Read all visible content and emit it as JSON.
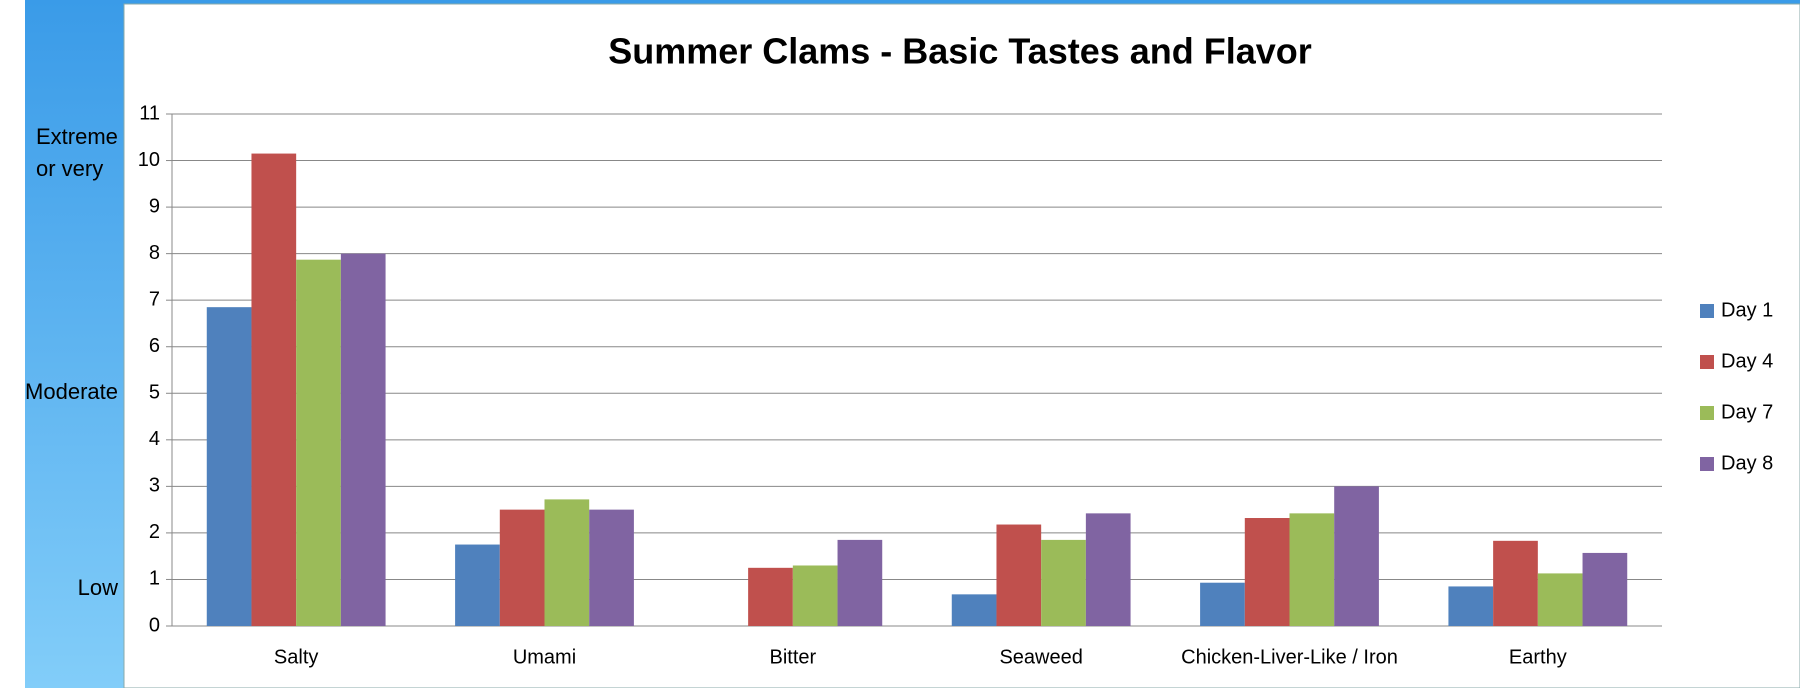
{
  "chart_data": {
    "type": "bar",
    "title": "Summer Clams - Basic Tastes and Flavor",
    "y_annotations": [
      "Extreme",
      "or very",
      "Moderate",
      "Low"
    ],
    "categories": [
      "Salty",
      "Umami",
      "Bitter",
      "Seaweed",
      "Chicken-Liver-Like / Iron",
      "Earthy"
    ],
    "series": [
      {
        "name": "Day 1",
        "color": "#4f81bd",
        "values": [
          6.85,
          1.75,
          null,
          0.68,
          0.93,
          0.85
        ]
      },
      {
        "name": "Day 4",
        "color": "#c0504d",
        "values": [
          10.15,
          2.5,
          1.25,
          2.18,
          2.32,
          1.83
        ]
      },
      {
        "name": "Day 7",
        "color": "#9bbb59",
        "values": [
          7.87,
          2.72,
          1.3,
          1.85,
          2.42,
          1.13
        ]
      },
      {
        "name": "Day 8",
        "color": "#8064a2",
        "values": [
          8.0,
          2.5,
          1.85,
          2.42,
          3.0,
          1.57
        ]
      }
    ],
    "ylim": [
      0,
      11
    ],
    "yticks": [
      0,
      1,
      2,
      3,
      4,
      5,
      6,
      7,
      8,
      9,
      10,
      11
    ],
    "grid": true,
    "legend": "right"
  }
}
